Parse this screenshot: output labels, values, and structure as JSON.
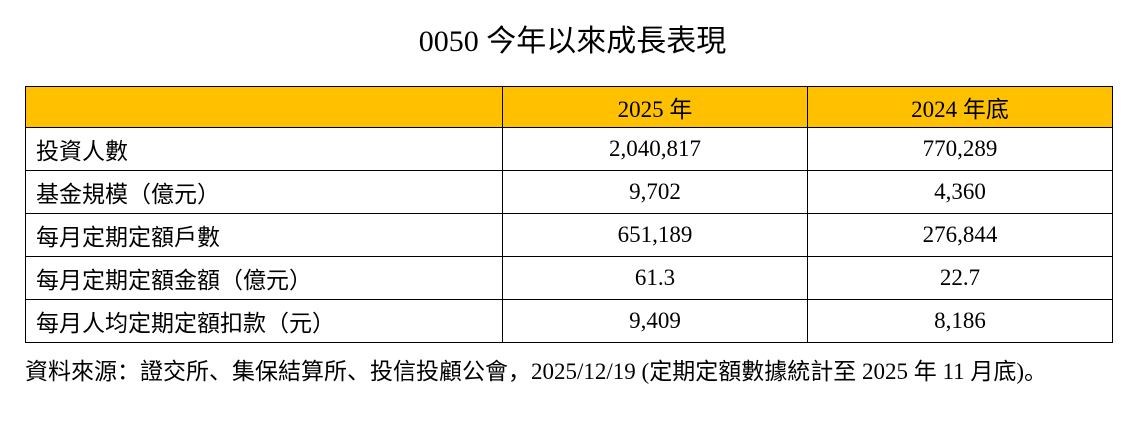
{
  "header": {
    "title": "0050 今年以來成長表現"
  },
  "table": {
    "columns": [
      "2025 年",
      "2024 年底"
    ],
    "rows": [
      [
        "投資人數",
        "2,040,817",
        "770,289"
      ],
      [
        "基金規模（億元）",
        "9,702",
        "4,360"
      ],
      [
        "每月定期定額戶數",
        "651,189",
        "276,844"
      ],
      [
        "每月定期定額金額（億元）",
        "61.3",
        "22.7"
      ],
      [
        "每月人均定期定額扣款（元）",
        "9,409",
        "8,186"
      ]
    ]
  },
  "footnote": "資料來源：證交所、集保結算所、投信投顧公會，2025/12/19 (定期定額數據統計至 2025 年 11 月底)。"
}
